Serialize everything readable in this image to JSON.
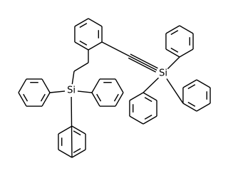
{
  "atoms": [
    {
      "label": "Si"
    },
    {
      "label": "Si"
    }
  ]
}
